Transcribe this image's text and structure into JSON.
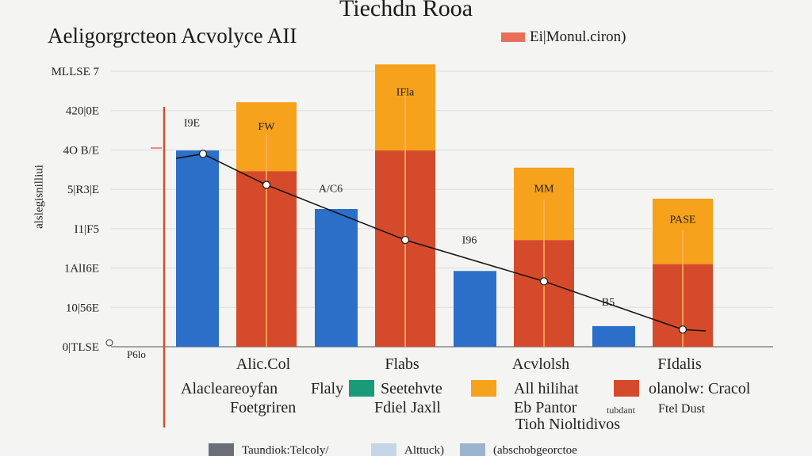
{
  "title": "Tiechdn Rooa",
  "subtitle": "Aeligorgrcteon Acvolyce AII",
  "top_legend": {
    "label": "Ei|Monul.ciron)",
    "color": "#e8705a"
  },
  "colors": {
    "blue": "#2b6fc8",
    "red": "#d64a2c",
    "orange": "#f6a21c",
    "axis_red": "#d0502a",
    "grid": "#dcdcdc",
    "bg": "#f4f4f2"
  },
  "chart_data": {
    "type": "bar",
    "title": "Tiechdn Rooa",
    "subtitle": "Aeligorgrcteon Acvolyce AII",
    "ylabel": "alslegisnilliui",
    "ylim": [
      0,
      8
    ],
    "y_ticks": [
      "0|TLSE",
      "10|56E",
      "1AlI6E",
      "I1|F5",
      "5|R3|E",
      "4O B/E",
      "420|0E",
      "MLLSE 7"
    ],
    "x_axis_left_label": "P6lo",
    "categories": [
      "Alic.Col",
      "Flabs",
      "Acvlolsh",
      "FIdalis"
    ],
    "series": [
      {
        "color": "blue",
        "values": [
          5.7,
          4.0,
          2.2,
          0.6
        ]
      },
      {
        "color": "red",
        "values": [
          5.1,
          5.7,
          3.1,
          2.4
        ]
      },
      {
        "color": "orange",
        "values": [
          2.0,
          2.5,
          2.1,
          1.9
        ]
      }
    ],
    "bar_labels": [
      {
        "text": "I9E",
        "value": 6.4,
        "cat": 0,
        "pos": 0
      },
      {
        "text": "FW",
        "value": 6.3,
        "cat": 0,
        "pos": 1
      },
      {
        "text": "A/C6",
        "value": 4.5,
        "cat": 1,
        "pos": 0
      },
      {
        "text": "IFla",
        "value": 7.3,
        "cat": 1,
        "pos": 1
      },
      {
        "text": "I96",
        "value": 3.0,
        "cat": 2,
        "pos": 0
      },
      {
        "text": "MM",
        "value": 4.5,
        "cat": 2,
        "pos": 1
      },
      {
        "text": "B5",
        "value": 1.2,
        "cat": 3,
        "pos": 0
      },
      {
        "text": "PASE",
        "value": 3.6,
        "cat": 3,
        "pos": 1
      }
    ],
    "trend_line": [
      {
        "cat": 0,
        "value": 5.6
      },
      {
        "cat": 0,
        "value": 4.7,
        "pos": 1
      },
      {
        "cat": 1,
        "value": 3.1,
        "pos": 1
      },
      {
        "cat": 2,
        "value": 1.9,
        "pos": 1
      },
      {
        "cat": 3,
        "value": 0.5,
        "pos": 1
      }
    ],
    "legend": [
      {
        "label": "Alacleareoyfan",
        "sub": "Foetgriren",
        "color": null
      },
      {
        "label": "Flaly",
        "sub": "Fdiel Jaxll",
        "color": "#1a9a78"
      },
      {
        "label": "Seetehvte",
        "sub": "",
        "color": null
      },
      {
        "label": "All hilihat",
        "sub": "Eb Pantor",
        "color": "#f6a21c"
      },
      {
        "label": "olanolw: Cracol",
        "sub": "Ftel Dust",
        "color": "#d64a2c"
      },
      {
        "label": "",
        "sub": "Tioh Nioltidivos",
        "color": null
      }
    ],
    "legend_extra": "tubdant",
    "bottom_legend": [
      {
        "label": "Taundiok:Telcoly/",
        "color": "#6a6e78"
      },
      {
        "label": "Alttuck)",
        "color": "#c5d6e6"
      },
      {
        "label": "(abschobgeorctoe",
        "color": "#9bb3cc"
      }
    ]
  }
}
